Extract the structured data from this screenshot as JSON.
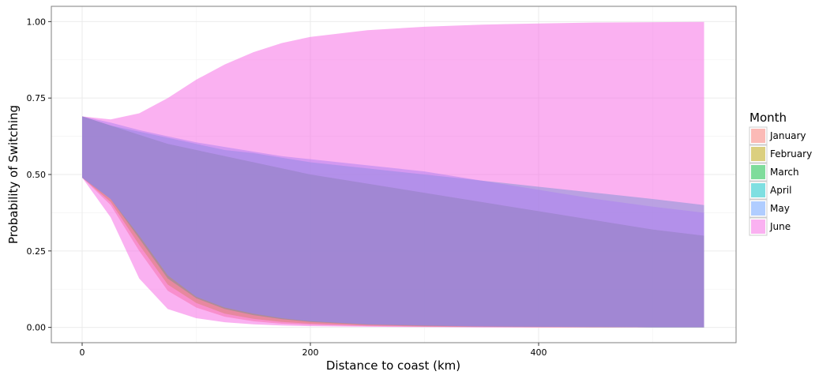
{
  "chart_data": {
    "type": "area",
    "title": "",
    "xlabel": "Distance to coast (km)",
    "ylabel": "Probability of Switching",
    "xlim": [
      -27,
      573
    ],
    "ylim": [
      -0.05,
      1.05
    ],
    "x_ticks": [
      0,
      200,
      400
    ],
    "x_tick_labels": [
      "0",
      "200",
      "400"
    ],
    "y_ticks": [
      0,
      0.25,
      0.5,
      0.75,
      1.0
    ],
    "y_tick_labels": [
      "0.00",
      "0.25",
      "0.50",
      "0.75",
      "1.00"
    ],
    "grid": true,
    "legend": {
      "title": "Month",
      "position": "right"
    },
    "x": [
      0,
      25,
      50,
      75,
      100,
      125,
      150,
      175,
      200,
      250,
      300,
      350,
      400,
      450,
      500,
      545
    ],
    "series": [
      {
        "name": "January",
        "color": "#F8766D",
        "lower": [
          0.49,
          0.4,
          0.25,
          0.12,
          0.065,
          0.035,
          0.02,
          0.012,
          0.008,
          0.004,
          0.002,
          0.001,
          0.0,
          0.0,
          0.0,
          0.0
        ],
        "upper": [
          0.69,
          0.66,
          0.63,
          0.6,
          0.58,
          0.56,
          0.54,
          0.52,
          0.5,
          0.47,
          0.44,
          0.41,
          0.38,
          0.35,
          0.32,
          0.3
        ]
      },
      {
        "name": "February",
        "color": "#B79F00",
        "lower": [
          0.49,
          0.41,
          0.27,
          0.14,
          0.08,
          0.045,
          0.028,
          0.018,
          0.012,
          0.006,
          0.003,
          0.002,
          0.001,
          0.0,
          0.0,
          0.0
        ],
        "upper": [
          0.69,
          0.66,
          0.63,
          0.6,
          0.58,
          0.56,
          0.54,
          0.52,
          0.5,
          0.47,
          0.44,
          0.41,
          0.38,
          0.35,
          0.32,
          0.3
        ]
      },
      {
        "name": "March",
        "color": "#00BA38",
        "lower": [
          0.49,
          0.42,
          0.29,
          0.16,
          0.095,
          0.06,
          0.04,
          0.027,
          0.018,
          0.009,
          0.005,
          0.003,
          0.002,
          0.001,
          0.0,
          0.0
        ],
        "upper": [
          0.69,
          0.66,
          0.63,
          0.6,
          0.58,
          0.56,
          0.54,
          0.52,
          0.5,
          0.47,
          0.44,
          0.41,
          0.38,
          0.35,
          0.32,
          0.3
        ]
      },
      {
        "name": "April",
        "color": "#00BFC4",
        "lower": [
          0.49,
          0.42,
          0.3,
          0.17,
          0.1,
          0.065,
          0.045,
          0.03,
          0.02,
          0.01,
          0.006,
          0.003,
          0.002,
          0.001,
          0.0,
          0.0
        ],
        "upper": [
          0.69,
          0.66,
          0.64,
          0.62,
          0.6,
          0.58,
          0.57,
          0.555,
          0.54,
          0.52,
          0.5,
          0.48,
          0.46,
          0.44,
          0.42,
          0.4
        ]
      },
      {
        "name": "May",
        "color": "#619CFF",
        "lower": [
          0.49,
          0.42,
          0.3,
          0.17,
          0.1,
          0.065,
          0.045,
          0.03,
          0.02,
          0.01,
          0.006,
          0.003,
          0.002,
          0.001,
          0.0,
          0.0
        ],
        "upper": [
          0.69,
          0.67,
          0.645,
          0.625,
          0.605,
          0.59,
          0.575,
          0.56,
          0.55,
          0.53,
          0.51,
          0.48,
          0.45,
          0.42,
          0.395,
          0.375
        ]
      },
      {
        "name": "June",
        "color": "#F564E3",
        "lower": [
          0.49,
          0.36,
          0.16,
          0.06,
          0.03,
          0.017,
          0.01,
          0.006,
          0.004,
          0.002,
          0.001,
          0.0,
          0.0,
          0.0,
          0.0,
          0.0
        ],
        "upper": [
          0.69,
          0.68,
          0.7,
          0.75,
          0.81,
          0.86,
          0.9,
          0.93,
          0.95,
          0.972,
          0.983,
          0.99,
          0.994,
          0.997,
          0.998,
          0.999
        ]
      }
    ]
  }
}
